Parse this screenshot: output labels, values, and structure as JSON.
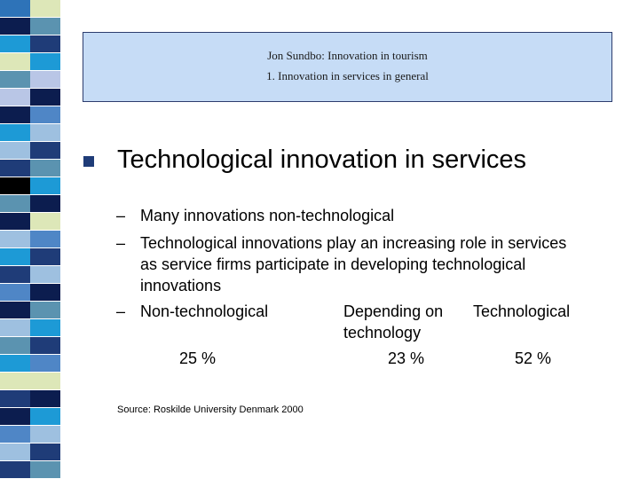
{
  "colors": {
    "title_bg": "#c6dcf6",
    "title_border": "#2d3d6e",
    "bullet": "#1f3c78",
    "strip_palette": [
      "#1f3c78",
      "#5b93b0",
      "#18326a",
      "#b9c6e6",
      "#1d9ad6",
      "#0c1d4f",
      "#dde7b8",
      "#4f86c6",
      "#000000",
      "#3b6ea0",
      "#9ec0e0",
      "#6aa6c8"
    ]
  },
  "title": {
    "line1": "Jon Sundbo: Innovation in tourism",
    "line2": "1. Innovation in services in general"
  },
  "heading": "Technological innovation in services",
  "bullet_icon": "square-bullet-icon",
  "sub_items": [
    "Many innovations non-technological",
    "Technological innovations play an increasing role in services",
    "as service firms participate in developing technological",
    "innovations",
    "Non-technological"
  ],
  "columns": {
    "depending_line1": "Depending on",
    "depending_line2": "technology",
    "technological": "Technological"
  },
  "values": {
    "non_tech": "25 %",
    "depending": "23 %",
    "technological": "52 %"
  },
  "source": "Source: Roskilde University Denmark 2000"
}
